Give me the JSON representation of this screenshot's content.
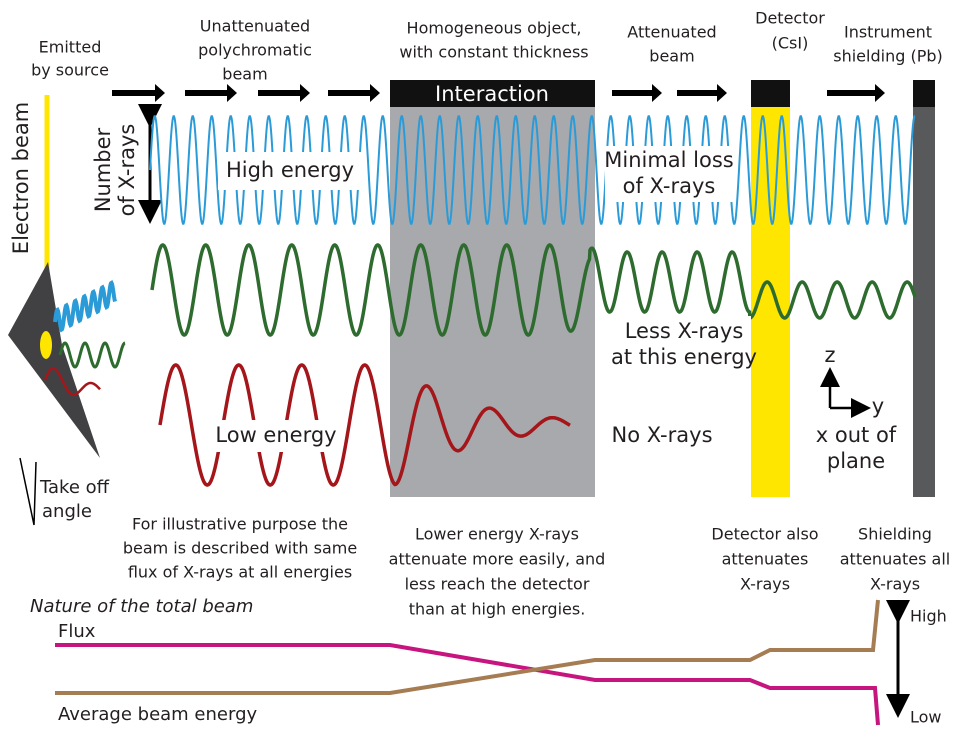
{
  "header": {
    "emitted": [
      "Emitted",
      "by source"
    ],
    "unattenuated": [
      "Unattenuated",
      "polychromatic",
      "beam"
    ],
    "object": [
      "Homogeneous object,",
      "with constant thickness"
    ],
    "attenuated": [
      "Attenuated",
      "beam"
    ],
    "detector": [
      "Detector",
      "(CsI)"
    ],
    "shielding": [
      "Instrument",
      "shielding (Pb)"
    ]
  },
  "interaction": "Interaction",
  "electron_beam": "Electron beam",
  "number_of_xrays": [
    "Number",
    "of X-rays"
  ],
  "high_energy": "High energy",
  "minimal_loss": [
    "Minimal loss",
    "of X-rays"
  ],
  "less_xrays": [
    "Less X-rays",
    "at this energy"
  ],
  "low_energy": "Low energy",
  "no_xrays": "No X-rays",
  "axes": {
    "z": "z",
    "y": "y",
    "x": [
      "x out of",
      "plane"
    ]
  },
  "take_off_angle": [
    "Take off",
    "angle"
  ],
  "notes": {
    "illustrative": [
      "For illustrative purpose the",
      "beam is described with same",
      "flux of X-rays at all energies"
    ],
    "lower_energy": [
      "Lower energy X-rays",
      "attenuate more easily, and",
      "less reach the detector",
      "than at high energies."
    ],
    "detector_attenuates": [
      "Detector also",
      "attenuates",
      "X-rays"
    ],
    "shielding_attenuates": [
      "Shielding",
      "attenuates all",
      "X-rays"
    ]
  },
  "total_beam": {
    "title": "Nature of the total beam",
    "flux": "Flux",
    "average_energy": "Average beam energy",
    "high": "High",
    "low": "Low"
  }
}
